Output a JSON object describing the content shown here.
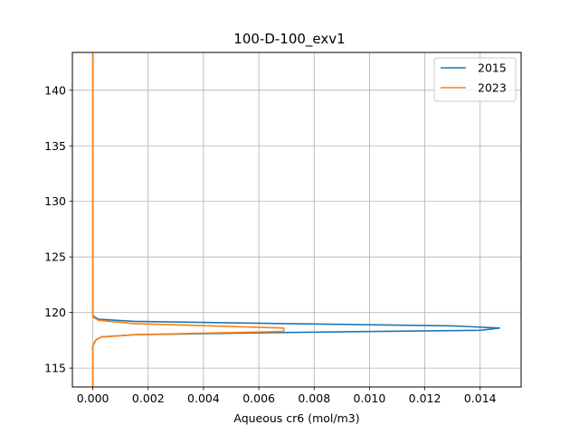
{
  "chart_data": {
    "type": "line",
    "title": "100-D-100_exv1",
    "xlabel": "Aqueous cr6 (mol/m3)",
    "ylabel": "",
    "xlim": [
      -0.00074,
      0.01548
    ],
    "ylim": [
      143.4,
      113.3
    ],
    "y_inverted": true,
    "grid": true,
    "legend_position": "top-right",
    "xticks": [
      0.0,
      0.002,
      0.004,
      0.006,
      0.008,
      0.01,
      0.012,
      0.014
    ],
    "xtick_labels": [
      "0.000",
      "0.002",
      "0.004",
      "0.006",
      "0.008",
      "0.010",
      "0.012",
      "0.014"
    ],
    "yticks": [
      115,
      120,
      125,
      130,
      135,
      140
    ],
    "ytick_labels": [
      "115",
      "120",
      "125",
      "130",
      "135",
      "140"
    ],
    "series": [
      {
        "name": "2015",
        "color": "#1f77b4",
        "points": [
          [
            0.0,
            113.3
          ],
          [
            0.0,
            117.0
          ],
          [
            0.0001,
            117.5
          ],
          [
            0.0003,
            117.8
          ],
          [
            0.0015,
            118.0
          ],
          [
            0.0068,
            118.2
          ],
          [
            0.014,
            118.4
          ],
          [
            0.0147,
            118.6
          ],
          [
            0.013,
            118.8
          ],
          [
            0.007,
            119.0
          ],
          [
            0.0015,
            119.2
          ],
          [
            0.0002,
            119.4
          ],
          [
            0.0,
            119.7
          ],
          [
            0.0,
            143.4
          ]
        ]
      },
      {
        "name": "2023",
        "color": "#ff7f0e",
        "points": [
          [
            0.0,
            113.3
          ],
          [
            0.0,
            117.0
          ],
          [
            0.0001,
            117.5
          ],
          [
            0.0003,
            117.8
          ],
          [
            0.0015,
            118.0
          ],
          [
            0.0069,
            118.3
          ],
          [
            0.0069,
            118.6
          ],
          [
            0.0015,
            119.0
          ],
          [
            0.0002,
            119.3
          ],
          [
            0.0,
            119.6
          ],
          [
            0.0,
            143.4
          ]
        ]
      }
    ]
  }
}
